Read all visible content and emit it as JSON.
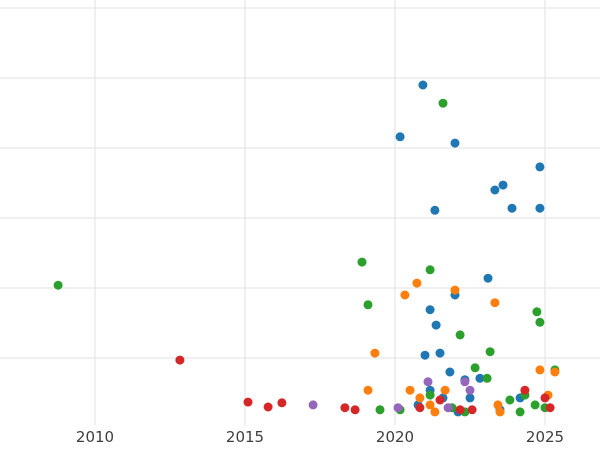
{
  "chart_data": {
    "type": "scatter",
    "title": "",
    "xlabel": "",
    "ylabel": "",
    "x_ticks": [
      "2010",
      "2015",
      "2020",
      "2025"
    ],
    "x_tick_years": [
      2010,
      2015,
      2020,
      2025
    ],
    "x_range": [
      2006.833,
      2026.833
    ],
    "y_range": [
      -0.314,
      6.114
    ],
    "y_gridlines": [
      1,
      2,
      3,
      4,
      5,
      6
    ],
    "grid": true,
    "legend": "none",
    "marker_radius": 4.5,
    "colors": {
      "grid": "#e0e0e0",
      "tick_label": "#3d3d3d",
      "background": "#ffffff"
    },
    "series": [
      {
        "name": "blue",
        "color": "#1f77b4",
        "points": [
          [
            2020.93,
            4.9
          ],
          [
            2020.17,
            4.16
          ],
          [
            2022.0,
            4.07
          ],
          [
            2024.83,
            3.73
          ],
          [
            2023.6,
            3.47
          ],
          [
            2023.33,
            3.4
          ],
          [
            2023.9,
            3.14
          ],
          [
            2024.83,
            3.14
          ],
          [
            2021.33,
            3.11
          ],
          [
            2023.1,
            2.14
          ],
          [
            2022.0,
            1.9
          ],
          [
            2021.17,
            1.69
          ],
          [
            2021.37,
            1.47
          ],
          [
            2021.0,
            1.04
          ],
          [
            2021.5,
            1.07
          ],
          [
            2021.83,
            0.8
          ],
          [
            2022.33,
            0.69
          ],
          [
            2022.83,
            0.71
          ],
          [
            2021.17,
            0.54
          ],
          [
            2021.6,
            0.43
          ],
          [
            2020.77,
            0.33
          ],
          [
            2022.5,
            0.43
          ],
          [
            2024.17,
            0.43
          ],
          [
            2023.5,
            0.26
          ],
          [
            2022.1,
            0.23
          ]
        ]
      },
      {
        "name": "green",
        "color": "#2ca02c",
        "points": [
          [
            2008.77,
            2.04
          ],
          [
            2021.6,
            4.64
          ],
          [
            2018.9,
            2.37
          ],
          [
            2021.17,
            2.26
          ],
          [
            2019.1,
            1.76
          ],
          [
            2024.73,
            1.66
          ],
          [
            2024.83,
            1.51
          ],
          [
            2022.17,
            1.33
          ],
          [
            2023.17,
            1.09
          ],
          [
            2022.67,
            0.86
          ],
          [
            2019.5,
            0.26
          ],
          [
            2020.17,
            0.26
          ],
          [
            2021.17,
            0.47
          ],
          [
            2021.9,
            0.29
          ],
          [
            2023.07,
            0.71
          ],
          [
            2023.83,
            0.4
          ],
          [
            2024.33,
            0.47
          ],
          [
            2024.67,
            0.33
          ],
          [
            2025.0,
            0.29
          ],
          [
            2025.33,
            0.83
          ],
          [
            2024.17,
            0.23
          ],
          [
            2022.33,
            0.23
          ]
        ]
      },
      {
        "name": "orange",
        "color": "#ff7f0e",
        "points": [
          [
            2020.73,
            2.07
          ],
          [
            2020.33,
            1.9
          ],
          [
            2023.33,
            1.79
          ],
          [
            2022.0,
            1.97
          ],
          [
            2019.33,
            1.07
          ],
          [
            2019.1,
            0.54
          ],
          [
            2020.5,
            0.54
          ],
          [
            2020.83,
            0.43
          ],
          [
            2021.17,
            0.33
          ],
          [
            2021.67,
            0.54
          ],
          [
            2023.43,
            0.33
          ],
          [
            2024.83,
            0.83
          ],
          [
            2025.1,
            0.47
          ],
          [
            2025.33,
            0.8
          ],
          [
            2023.5,
            0.23
          ],
          [
            2021.33,
            0.23
          ]
        ]
      },
      {
        "name": "red",
        "color": "#d62728",
        "points": [
          [
            2012.83,
            0.97
          ],
          [
            2015.1,
            0.37
          ],
          [
            2015.77,
            0.3
          ],
          [
            2016.23,
            0.36
          ],
          [
            2018.33,
            0.29
          ],
          [
            2018.67,
            0.26
          ],
          [
            2020.83,
            0.29
          ],
          [
            2021.5,
            0.4
          ],
          [
            2022.17,
            0.26
          ],
          [
            2022.57,
            0.26
          ],
          [
            2024.33,
            0.54
          ],
          [
            2025.0,
            0.43
          ],
          [
            2025.17,
            0.29
          ]
        ]
      },
      {
        "name": "purple",
        "color": "#9467bd",
        "points": [
          [
            2017.27,
            0.33
          ],
          [
            2020.1,
            0.29
          ],
          [
            2021.1,
            0.66
          ],
          [
            2022.33,
            0.66
          ],
          [
            2021.77,
            0.29
          ],
          [
            2022.5,
            0.54
          ]
        ]
      }
    ]
  }
}
